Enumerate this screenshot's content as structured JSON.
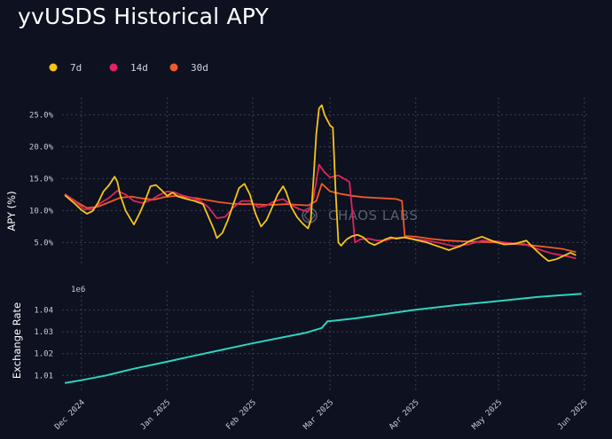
{
  "title": "yvUSDS Historical APY",
  "watermark": "CHAOS LABS",
  "colors": {
    "background": "#0d1120",
    "grid": "#3a3f50",
    "apy_7d": "#f5c518",
    "apy_14d": "#e0245e",
    "apy_30d": "#f05a28",
    "exchange_rate": "#2dd4bf"
  },
  "chart_data": [
    {
      "type": "line",
      "ylabel": "APY (%)",
      "yticks": [
        "5.0%",
        "10.0%",
        "15.0%",
        "20.0%",
        "25.0%"
      ],
      "yticks_values": [
        5,
        10,
        15,
        20,
        25
      ],
      "ylim": [
        2,
        27
      ],
      "xlim": [
        "2024-11-24",
        "2025-06-03"
      ],
      "grid": true,
      "legend_position": "top-left",
      "series": [
        {
          "name": "7d",
          "color": "#f5c518",
          "points": [
            [
              "2024-11-25",
              12.4
            ],
            [
              "2024-11-28",
              11.3
            ],
            [
              "2024-12-01",
              10.1
            ],
            [
              "2024-12-03",
              9.5
            ],
            [
              "2024-12-05",
              9.9
            ],
            [
              "2024-12-07",
              11.2
            ],
            [
              "2024-12-09",
              13.0
            ],
            [
              "2024-12-11",
              14.0
            ],
            [
              "2024-12-13",
              15.3
            ],
            [
              "2024-12-14",
              14.5
            ],
            [
              "2024-12-15",
              12.5
            ],
            [
              "2024-12-17",
              10.0
            ],
            [
              "2024-12-19",
              8.5
            ],
            [
              "2024-12-20",
              7.8
            ],
            [
              "2024-12-22",
              9.5
            ],
            [
              "2024-12-24",
              11.5
            ],
            [
              "2024-12-26",
              13.8
            ],
            [
              "2024-12-28",
              14.0
            ],
            [
              "2024-12-30",
              13.2
            ],
            [
              "2025-01-01",
              12.3
            ],
            [
              "2025-01-03",
              12.8
            ],
            [
              "2025-01-05",
              12.2
            ],
            [
              "2025-01-08",
              11.8
            ],
            [
              "2025-01-11",
              11.5
            ],
            [
              "2025-01-14",
              11.0
            ],
            [
              "2025-01-16",
              9.0
            ],
            [
              "2025-01-18",
              7.0
            ],
            [
              "2025-01-19",
              5.7
            ],
            [
              "2025-01-21",
              6.5
            ],
            [
              "2025-01-23",
              8.5
            ],
            [
              "2025-01-25",
              11.0
            ],
            [
              "2025-01-27",
              13.5
            ],
            [
              "2025-01-29",
              14.2
            ],
            [
              "2025-01-31",
              12.5
            ],
            [
              "2025-02-02",
              9.5
            ],
            [
              "2025-02-04",
              7.5
            ],
            [
              "2025-02-06",
              8.5
            ],
            [
              "2025-02-08",
              10.5
            ],
            [
              "2025-02-10",
              12.5
            ],
            [
              "2025-02-12",
              13.8
            ],
            [
              "2025-02-13",
              13.0
            ],
            [
              "2025-02-15",
              10.5
            ],
            [
              "2025-02-17",
              9.0
            ],
            [
              "2025-02-19",
              8.0
            ],
            [
              "2025-02-21",
              7.2
            ],
            [
              "2025-02-22",
              8.5
            ],
            [
              "2025-02-23",
              15.0
            ],
            [
              "2025-02-24",
              22.0
            ],
            [
              "2025-02-25",
              26.0
            ],
            [
              "2025-02-26",
              26.5
            ],
            [
              "2025-02-27",
              25.0
            ],
            [
              "2025-03-01",
              23.3
            ],
            [
              "2025-03-02",
              23.0
            ],
            [
              "2025-03-03",
              13.0
            ],
            [
              "2025-03-04",
              5.0
            ],
            [
              "2025-03-05",
              4.5
            ],
            [
              "2025-03-07",
              5.5
            ],
            [
              "2025-03-09",
              6.0
            ],
            [
              "2025-03-11",
              6.2
            ],
            [
              "2025-03-13",
              5.8
            ],
            [
              "2025-03-15",
              5.0
            ],
            [
              "2025-03-17",
              4.6
            ],
            [
              "2025-03-19",
              5.0
            ],
            [
              "2025-03-21",
              5.5
            ],
            [
              "2025-03-23",
              5.8
            ],
            [
              "2025-03-25",
              5.6
            ],
            [
              "2025-03-28",
              5.8
            ],
            [
              "2025-04-01",
              5.4
            ],
            [
              "2025-04-05",
              5.0
            ],
            [
              "2025-04-09",
              4.4
            ],
            [
              "2025-04-13",
              3.8
            ],
            [
              "2025-04-17",
              4.4
            ],
            [
              "2025-04-21",
              5.3
            ],
            [
              "2025-04-25",
              5.9
            ],
            [
              "2025-04-29",
              5.2
            ],
            [
              "2025-05-03",
              4.7
            ],
            [
              "2025-05-07",
              4.8
            ],
            [
              "2025-05-11",
              5.3
            ],
            [
              "2025-05-14",
              4.0
            ],
            [
              "2025-05-17",
              2.8
            ],
            [
              "2025-05-19",
              2.1
            ],
            [
              "2025-05-22",
              2.4
            ],
            [
              "2025-05-25",
              3.0
            ],
            [
              "2025-05-27",
              3.4
            ],
            [
              "2025-05-29",
              3.0
            ]
          ]
        },
        {
          "name": "14d",
          "color": "#e0245e",
          "points": [
            [
              "2024-11-25",
              12.6
            ],
            [
              "2024-11-29",
              11.3
            ],
            [
              "2024-12-02",
              10.2
            ],
            [
              "2024-12-05",
              10.2
            ],
            [
              "2024-12-08",
              11.2
            ],
            [
              "2024-12-11",
              12.0
            ],
            [
              "2024-12-14",
              13.1
            ],
            [
              "2024-12-17",
              12.5
            ],
            [
              "2024-12-20",
              11.5
            ],
            [
              "2024-12-23",
              11.2
            ],
            [
              "2024-12-26",
              11.6
            ],
            [
              "2024-12-29",
              12.4
            ],
            [
              "2025-01-01",
              13.0
            ],
            [
              "2025-01-04",
              12.8
            ],
            [
              "2025-01-07",
              12.3
            ],
            [
              "2025-01-10",
              12.0
            ],
            [
              "2025-01-13",
              11.5
            ],
            [
              "2025-01-16",
              10.5
            ],
            [
              "2025-01-19",
              8.8
            ],
            [
              "2025-01-22",
              9.0
            ],
            [
              "2025-01-25",
              10.5
            ],
            [
              "2025-01-28",
              11.5
            ],
            [
              "2025-01-31",
              11.5
            ],
            [
              "2025-02-03",
              10.5
            ],
            [
              "2025-02-06",
              10.8
            ],
            [
              "2025-02-09",
              11.5
            ],
            [
              "2025-02-12",
              11.8
            ],
            [
              "2025-02-15",
              10.8
            ],
            [
              "2025-02-18",
              10.2
            ],
            [
              "2025-02-21",
              9.8
            ],
            [
              "2025-02-23",
              12.0
            ],
            [
              "2025-02-25",
              17.2
            ],
            [
              "2025-02-27",
              16.0
            ],
            [
              "2025-03-01",
              15.2
            ],
            [
              "2025-03-04",
              15.5
            ],
            [
              "2025-03-06",
              15.0
            ],
            [
              "2025-03-08",
              14.5
            ],
            [
              "2025-03-09",
              10.0
            ],
            [
              "2025-03-10",
              5.0
            ],
            [
              "2025-03-12",
              5.5
            ],
            [
              "2025-03-15",
              5.6
            ],
            [
              "2025-03-18",
              5.3
            ],
            [
              "2025-03-21",
              5.3
            ],
            [
              "2025-03-24",
              5.7
            ],
            [
              "2025-03-27",
              5.8
            ],
            [
              "2025-04-01",
              5.5
            ],
            [
              "2025-04-05",
              5.3
            ],
            [
              "2025-04-10",
              4.9
            ],
            [
              "2025-04-15",
              4.4
            ],
            [
              "2025-04-20",
              4.7
            ],
            [
              "2025-04-25",
              5.3
            ],
            [
              "2025-04-30",
              5.2
            ],
            [
              "2025-05-05",
              4.9
            ],
            [
              "2025-05-10",
              4.8
            ],
            [
              "2025-05-15",
              4.0
            ],
            [
              "2025-05-20",
              3.3
            ],
            [
              "2025-05-25",
              2.9
            ],
            [
              "2025-05-29",
              2.5
            ]
          ]
        },
        {
          "name": "30d",
          "color": "#f05a28",
          "points": [
            [
              "2024-11-25",
              12.6
            ],
            [
              "2024-11-29",
              11.4
            ],
            [
              "2024-12-03",
              10.4
            ],
            [
              "2024-12-07",
              10.6
            ],
            [
              "2024-12-11",
              11.3
            ],
            [
              "2024-12-15",
              12.0
            ],
            [
              "2024-12-19",
              12.2
            ],
            [
              "2024-12-23",
              11.9
            ],
            [
              "2024-12-27",
              11.7
            ],
            [
              "2024-12-31",
              12.1
            ],
            [
              "2025-01-04",
              12.3
            ],
            [
              "2025-01-08",
              12.1
            ],
            [
              "2025-01-12",
              11.9
            ],
            [
              "2025-01-16",
              11.6
            ],
            [
              "2025-01-20",
              11.3
            ],
            [
              "2025-01-24",
              11.1
            ],
            [
              "2025-01-28",
              11.0
            ],
            [
              "2025-02-01",
              11.0
            ],
            [
              "2025-02-05",
              10.9
            ],
            [
              "2025-02-09",
              10.9
            ],
            [
              "2025-02-13",
              11.0
            ],
            [
              "2025-02-17",
              10.9
            ],
            [
              "2025-02-21",
              10.8
            ],
            [
              "2025-02-24",
              11.5
            ],
            [
              "2025-02-26",
              14.2
            ],
            [
              "2025-03-01",
              13.0
            ],
            [
              "2025-03-05",
              12.6
            ],
            [
              "2025-03-09",
              12.3
            ],
            [
              "2025-03-13",
              12.1
            ],
            [
              "2025-03-17",
              12.0
            ],
            [
              "2025-03-21",
              11.9
            ],
            [
              "2025-03-25",
              11.8
            ],
            [
              "2025-03-27",
              11.5
            ],
            [
              "2025-03-28",
              6.0
            ],
            [
              "2025-04-01",
              5.9
            ],
            [
              "2025-04-06",
              5.6
            ],
            [
              "2025-04-12",
              5.3
            ],
            [
              "2025-04-18",
              5.2
            ],
            [
              "2025-04-24",
              5.1
            ],
            [
              "2025-04-30",
              5.0
            ],
            [
              "2025-05-06",
              4.8
            ],
            [
              "2025-05-12",
              4.6
            ],
            [
              "2025-05-18",
              4.3
            ],
            [
              "2025-05-24",
              4.0
            ],
            [
              "2025-05-29",
              3.5
            ]
          ]
        }
      ]
    },
    {
      "type": "line",
      "ylabel": "Exchange Rate",
      "scale_label": "1e6",
      "yticks": [
        "1.01",
        "1.02",
        "1.03",
        "1.04"
      ],
      "yticks_values": [
        1.01,
        1.02,
        1.03,
        1.04
      ],
      "ylim": [
        1.004,
        1.048
      ],
      "xlim": [
        "2024-11-24",
        "2025-06-03"
      ],
      "grid": true,
      "xticks": [
        "Dec 2024",
        "Jan 2025",
        "Feb 2025",
        "Mar 2025",
        "Apr 2025",
        "May 2025",
        "Jun 2025"
      ],
      "xticks_dates": [
        "2024-12-01",
        "2025-01-01",
        "2025-02-01",
        "2025-03-01",
        "2025-04-01",
        "2025-05-01",
        "2025-06-01"
      ],
      "series": [
        {
          "color": "#2dd4bf",
          "points": [
            [
              "2024-11-25",
              1.0065
            ],
            [
              "2024-12-01",
              1.0078
            ],
            [
              "2024-12-10",
              1.01
            ],
            [
              "2024-12-20",
              1.0131
            ],
            [
              "2024-12-31",
              1.016
            ],
            [
              "2025-01-10",
              1.0188
            ],
            [
              "2025-01-20",
              1.0215
            ],
            [
              "2025-01-31",
              1.0245
            ],
            [
              "2025-02-10",
              1.027
            ],
            [
              "2025-02-20",
              1.0295
            ],
            [
              "2025-02-26",
              1.0318
            ],
            [
              "2025-02-28",
              1.0348
            ],
            [
              "2025-03-10",
              1.0362
            ],
            [
              "2025-03-20",
              1.038
            ],
            [
              "2025-03-31",
              1.04
            ],
            [
              "2025-04-15",
              1.0422
            ],
            [
              "2025-04-30",
              1.044
            ],
            [
              "2025-05-15",
              1.046
            ],
            [
              "2025-05-31",
              1.0475
            ]
          ]
        }
      ]
    }
  ],
  "legend": [
    {
      "label": "7d",
      "color": "#f5c518"
    },
    {
      "label": "14d",
      "color": "#e0245e"
    },
    {
      "label": "30d",
      "color": "#f05a28"
    }
  ]
}
